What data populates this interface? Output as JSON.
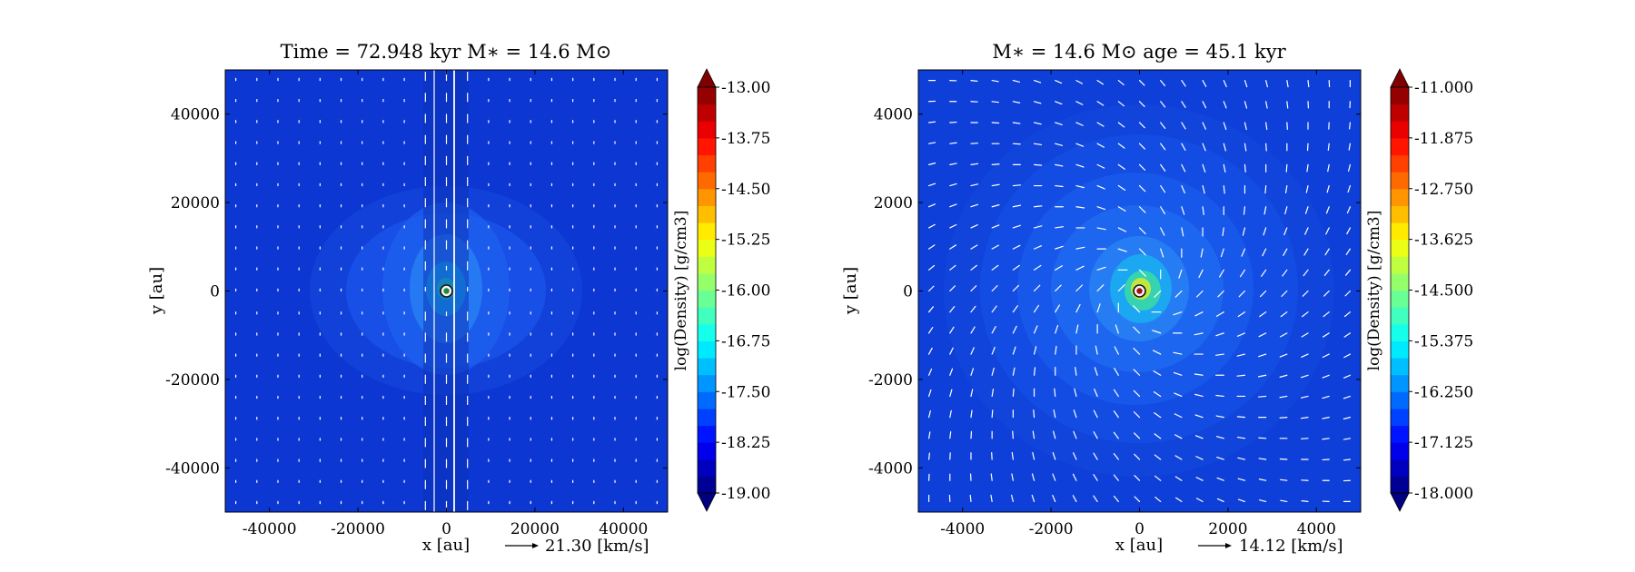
{
  "chart_data": [
    {
      "type": "heatmap",
      "title": "Time = 72.948 kyr    M∗ = 14.6 M⊙",
      "xlabel": "x [au]",
      "ylabel": "y [au]",
      "xlim": [
        -50000,
        50000
      ],
      "ylim": [
        -50000,
        50000
      ],
      "xticks": [
        -40000,
        -20000,
        0,
        20000,
        40000
      ],
      "yticks": [
        -40000,
        -20000,
        0,
        20000,
        40000
      ],
      "xtick_labels": [
        "-40000",
        "-20000",
        "0",
        "20000",
        "40000"
      ],
      "ytick_labels": [
        "-40000",
        "-20000",
        "0",
        "20000",
        "40000"
      ],
      "quiver_key": "21.30 [km/s]",
      "star": {
        "x": 0,
        "y": 0
      },
      "colorbar": {
        "label": "log(Density) [g/cm3]",
        "min": -19.0,
        "max": -13.0,
        "ticks": [
          -13.0,
          -13.75,
          -14.5,
          -15.25,
          -16.0,
          -16.75,
          -17.5,
          -18.25,
          -19.0
        ],
        "tick_labels": [
          "-13.00",
          "-13.75",
          "-14.50",
          "-15.25",
          "-16.00",
          "-16.75",
          "-17.50",
          "-18.25",
          "-19.00"
        ],
        "extend": "both",
        "colormap": "jet"
      },
      "background_log_density": -18.4
    },
    {
      "type": "heatmap",
      "title": "M∗ = 14.6 M⊙          age = 45.1 kyr",
      "xlabel": "x [au]",
      "ylabel": "y [au]",
      "xlim": [
        -5000,
        5000
      ],
      "ylim": [
        -5000,
        5000
      ],
      "xticks": [
        -4000,
        -2000,
        0,
        2000,
        4000
      ],
      "yticks": [
        -4000,
        -2000,
        0,
        2000,
        4000
      ],
      "xtick_labels": [
        "-4000",
        "-2000",
        "0",
        "2000",
        "4000"
      ],
      "ytick_labels": [
        "-4000",
        "-2000",
        "0",
        "2000",
        "4000"
      ],
      "quiver_key": "14.12 [km/s]",
      "star": {
        "x": 0,
        "y": 0
      },
      "colorbar": {
        "label": "log(Density) [g/cm3]",
        "min": -18.0,
        "max": -11.0,
        "ticks": [
          -11.0,
          -11.875,
          -12.75,
          -13.625,
          -14.5,
          -15.375,
          -16.25,
          -17.125,
          -18.0
        ],
        "tick_labels": [
          "-11.000",
          "-11.875",
          "-12.750",
          "-13.625",
          "-14.500",
          "-15.375",
          "-16.250",
          "-17.125",
          "-18.000"
        ],
        "extend": "both",
        "colormap": "jet"
      },
      "background_log_density": -17.4
    }
  ]
}
